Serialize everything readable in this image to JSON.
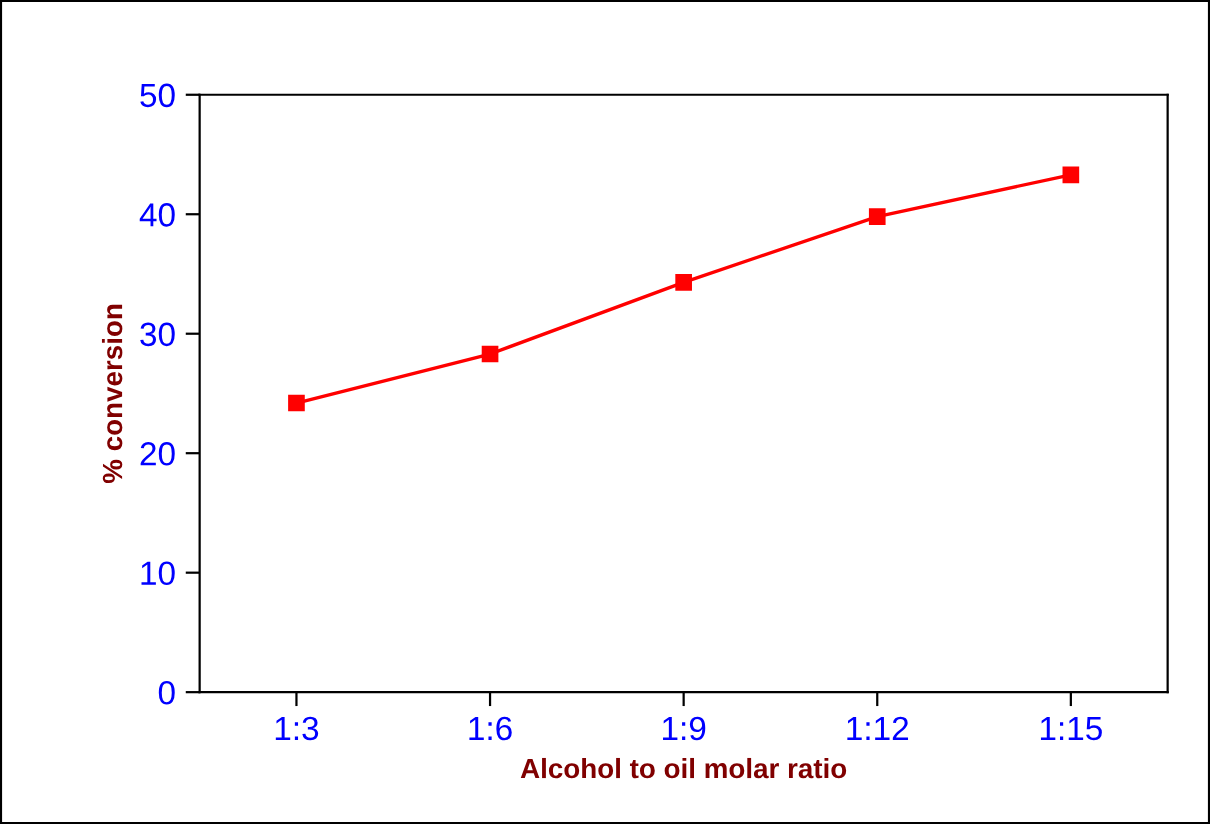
{
  "chart_data": {
    "type": "line",
    "xlabel": "Alcohol to oil molar ratio",
    "ylabel": "% conversion",
    "categories": [
      "1:3",
      "1:6",
      "1:9",
      "1:12",
      "1:15"
    ],
    "series": [
      {
        "color": "#ff0000",
        "values": [
          24.2,
          28.3,
          34.3,
          39.8,
          43.3
        ]
      }
    ],
    "ylim": [
      0,
      50
    ],
    "yticks": [
      0,
      10,
      20,
      30,
      40,
      50
    ],
    "marker": "square",
    "line_style": "solid"
  }
}
